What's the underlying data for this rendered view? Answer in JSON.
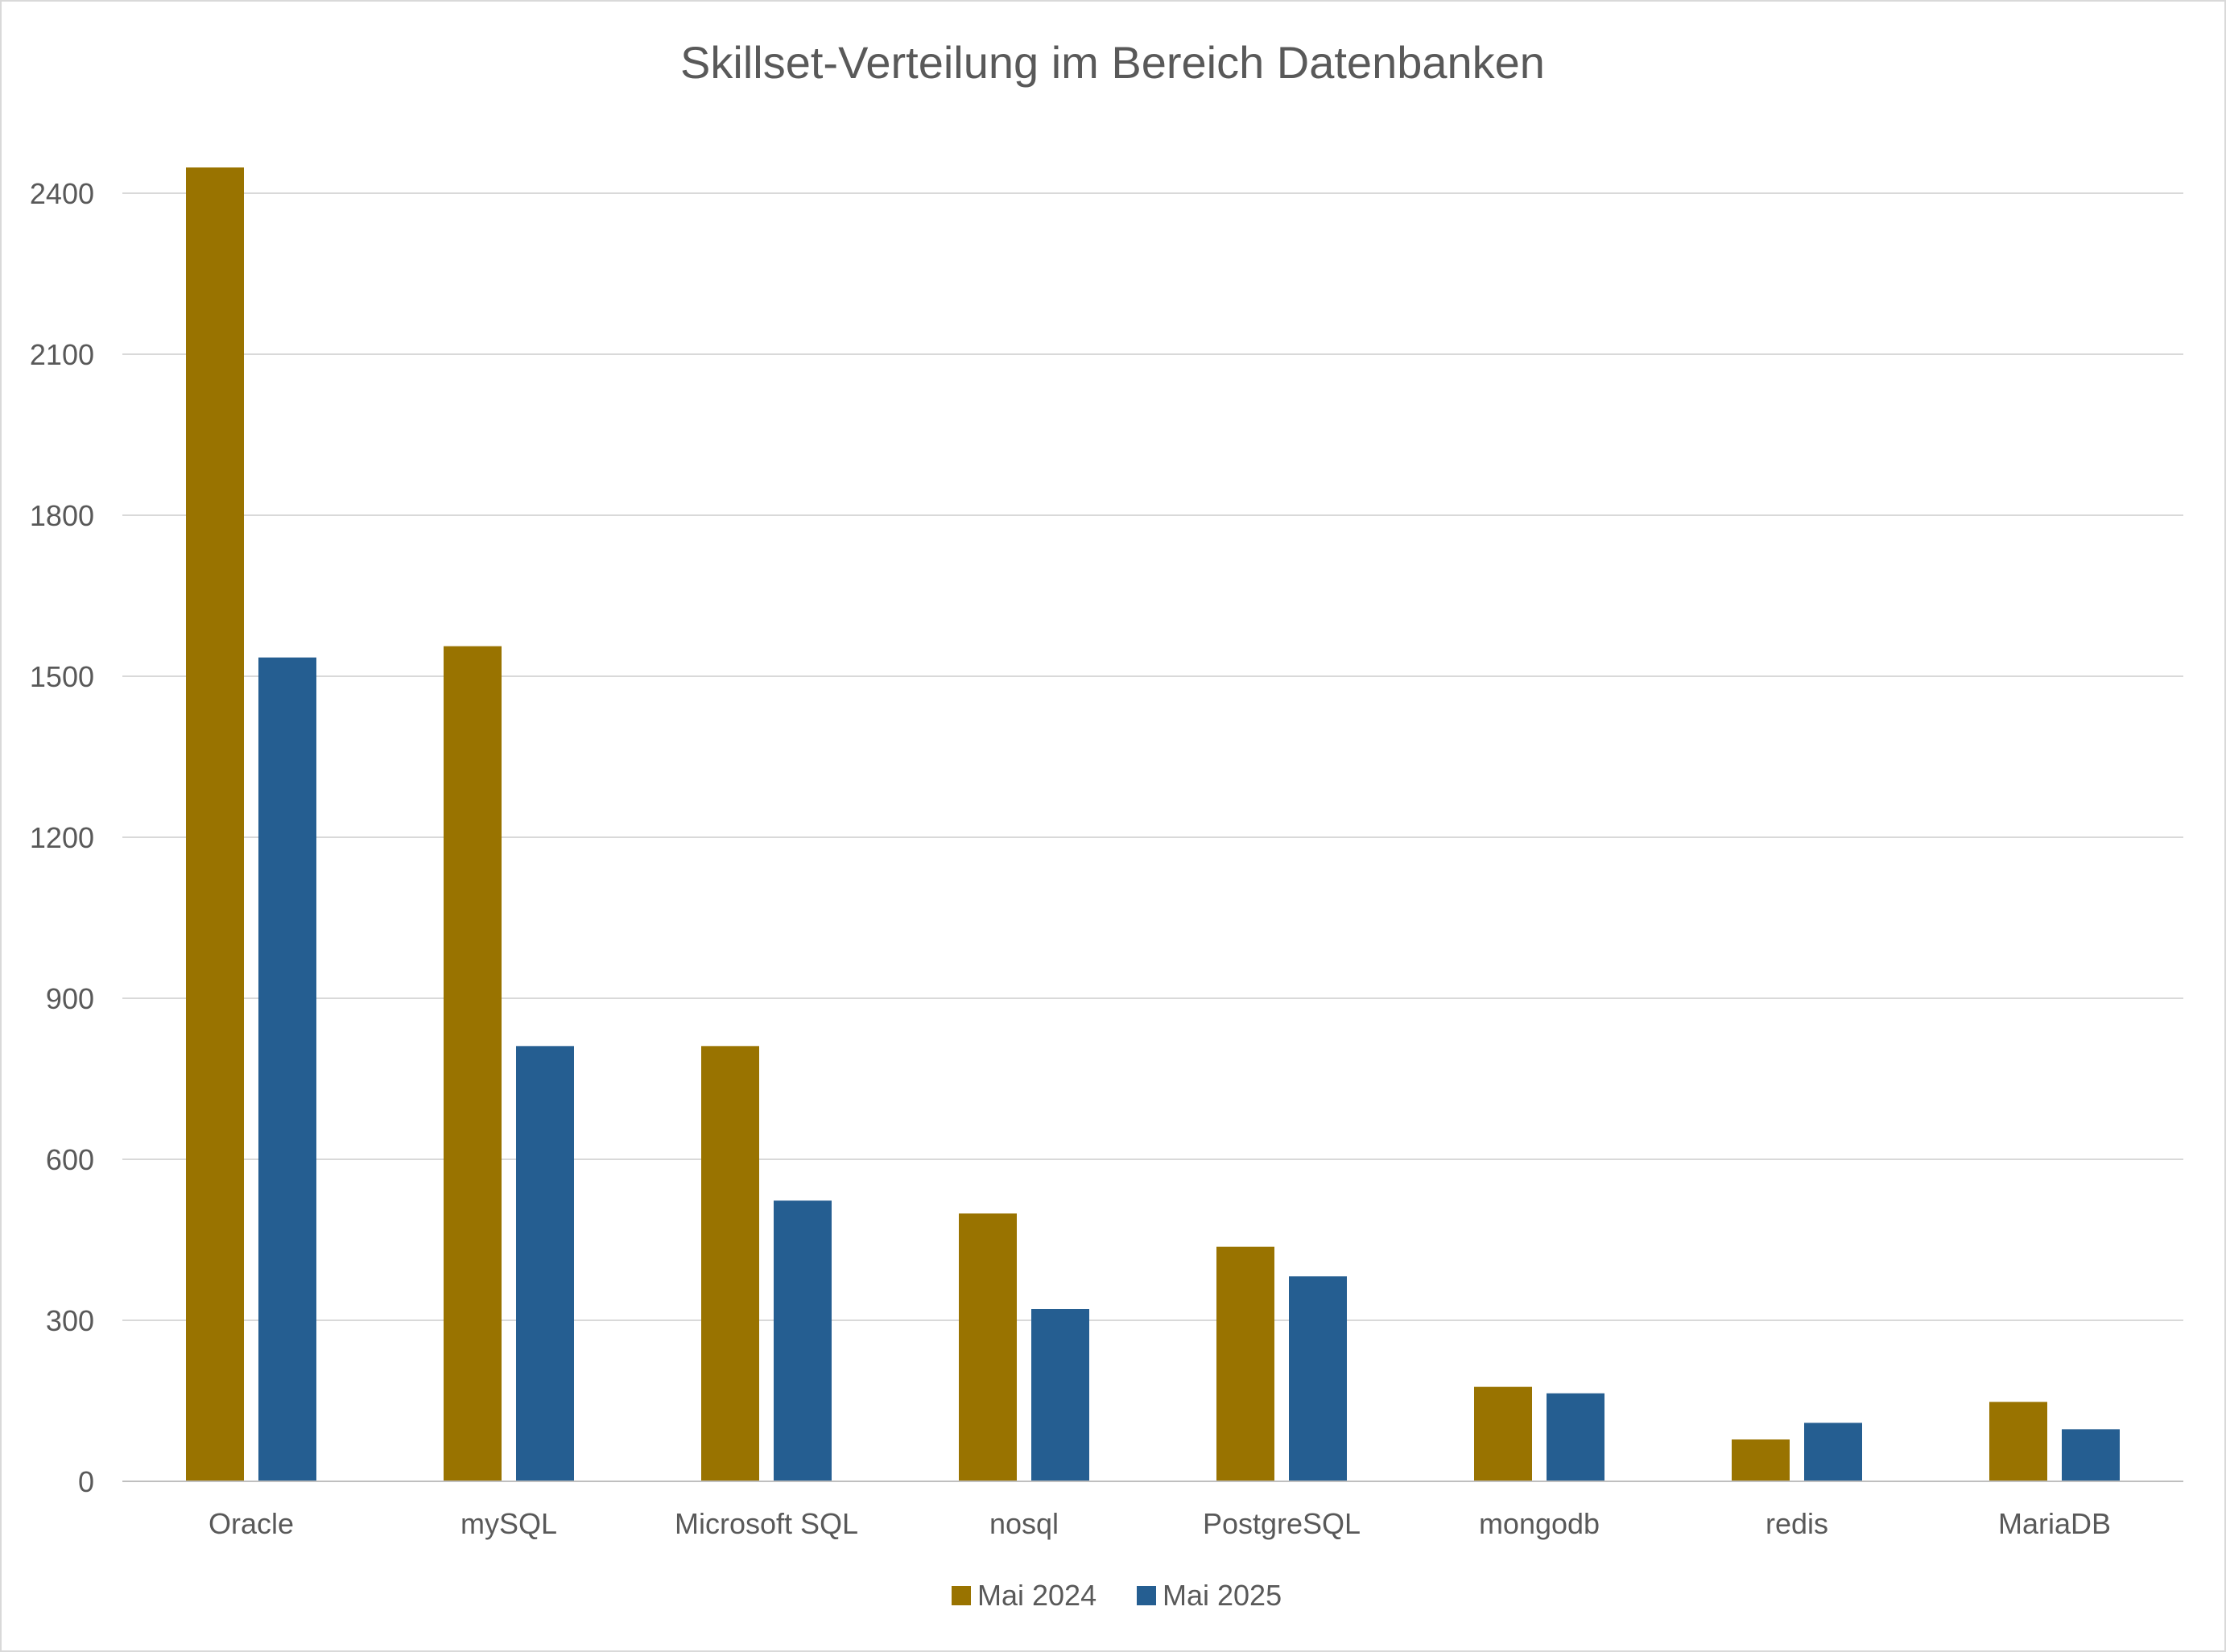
{
  "chart_data": {
    "type": "bar",
    "title": "Skillset-Verteilung im Bereich Datenbanken",
    "categories": [
      "Oracle",
      "mySQL",
      "Microsoft SQL",
      "nosql",
      "PostgreSQL",
      "mongodb",
      "redis",
      "MariaDB"
    ],
    "series": [
      {
        "name": "Mai 2024",
        "color": "#997300",
        "values": [
          2448,
          1556,
          811,
          499,
          437,
          176,
          78,
          148
        ]
      },
      {
        "name": "Mai 2025",
        "color": "#255e91",
        "values": [
          1535,
          811,
          523,
          321,
          382,
          164,
          109,
          97
        ]
      }
    ],
    "ylim": [
      0,
      2400
    ],
    "yticks": [
      "0",
      "300",
      "600",
      "900",
      "1200",
      "1500",
      "1800",
      "2100",
      "2400"
    ],
    "grid": true,
    "legend_position": "bottom",
    "xlabel": "",
    "ylabel": ""
  }
}
